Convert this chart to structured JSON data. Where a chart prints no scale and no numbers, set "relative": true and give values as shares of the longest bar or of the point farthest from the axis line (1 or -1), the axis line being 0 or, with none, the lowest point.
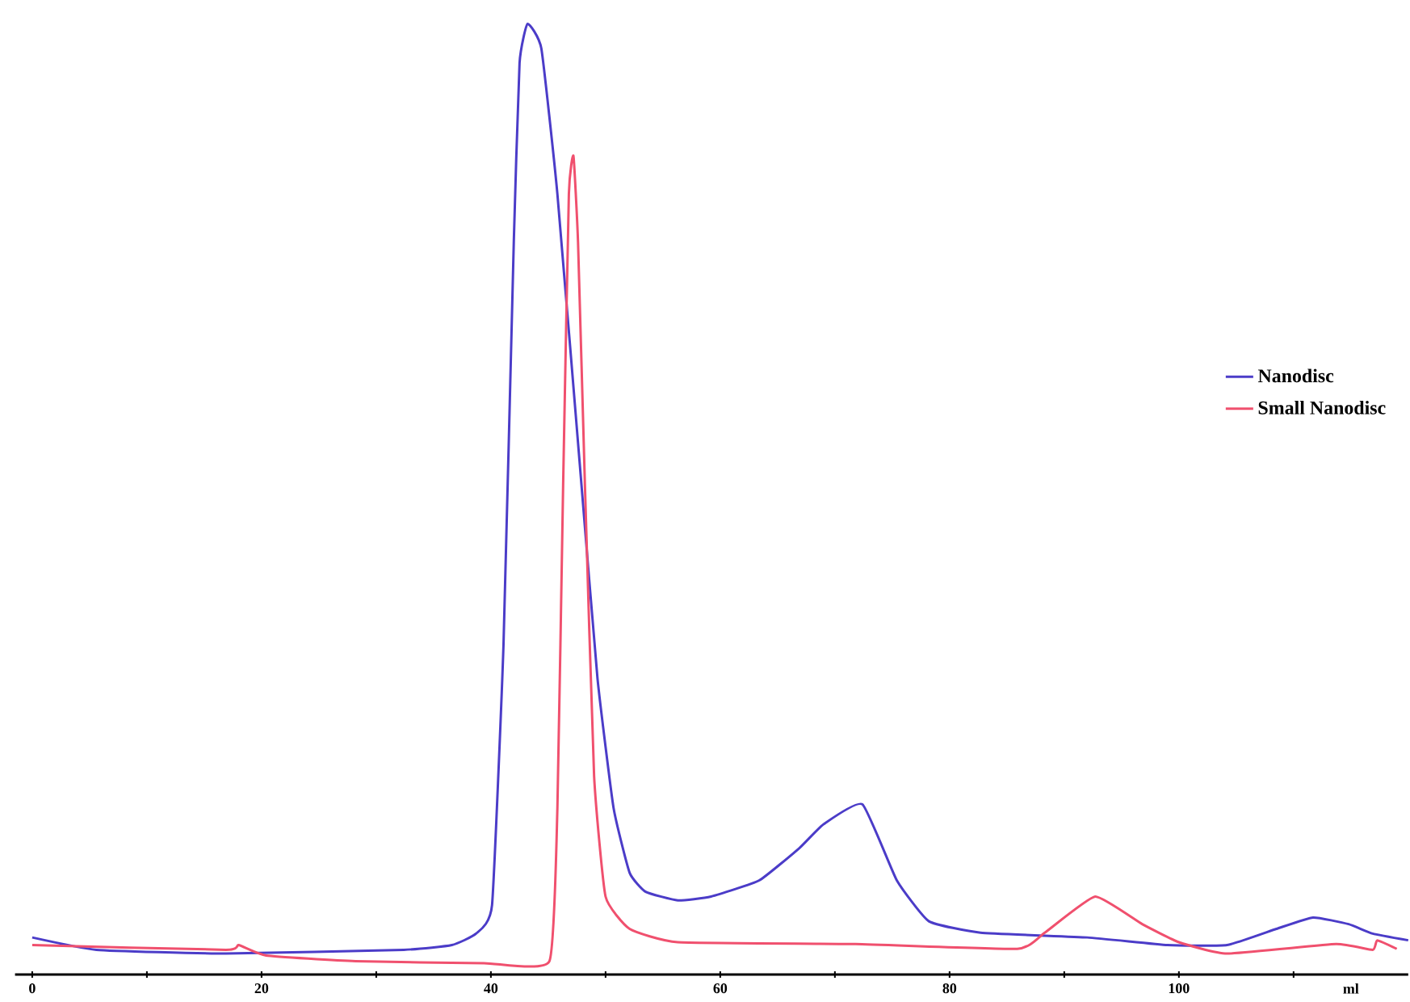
{
  "chart_data": {
    "type": "line",
    "relative": true,
    "xlabel": "ml",
    "xlim": [
      -1.5,
      120
    ],
    "xticks": [
      0,
      {
        "value": 10,
        "label": null
      },
      20,
      {
        "value": 30,
        "label": null
      },
      40,
      {
        "value": 50,
        "label": null
      },
      60,
      {
        "value": 70,
        "label": null
      },
      80,
      {
        "value": 90,
        "label": null
      },
      100,
      {
        "value": 110,
        "label": null
      }
    ],
    "legend": "right",
    "series": [
      {
        "name": "Nanodisc",
        "color": "#4b3cc8",
        "x": [
          0,
          5.6,
          16.9,
          32.4,
          36.6,
          38.7,
          40.1,
          41.1,
          42.0,
          42.5,
          43.2,
          44.4,
          45.8,
          47.9,
          49.3,
          50.7,
          52.1,
          53.5,
          56.3,
          59.2,
          63.4,
          66.9,
          69.0,
          72.4,
          75.4,
          78.2,
          82.7,
          92.0,
          99.0,
          104.2,
          108.5,
          111.7,
          114.8,
          116.9,
          120
        ],
        "values": [
          0.039,
          0.026,
          0.022,
          0.026,
          0.031,
          0.043,
          0.073,
          0.347,
          0.772,
          0.959,
          1.0,
          0.974,
          0.821,
          0.515,
          0.311,
          0.175,
          0.107,
          0.087,
          0.078,
          0.082,
          0.099,
          0.133,
          0.158,
          0.179,
          0.099,
          0.056,
          0.044,
          0.039,
          0.031,
          0.031,
          0.048,
          0.06,
          0.053,
          0.043,
          0.036
        ]
      },
      {
        "name": "Small Nanodisc",
        "color": "#f0506e",
        "x": [
          0,
          16.9,
          18.0,
          20.4,
          28.2,
          39.4,
          45.1,
          45.8,
          46.3,
          46.8,
          47.2,
          47.6,
          48.2,
          49.0,
          50.0,
          52.1,
          56.3,
          71.8,
          85.9,
          88.3,
          92.7,
          96.8,
          100.0,
          104.2,
          113.7,
          116.9,
          117.3,
          119.0
        ],
        "values": [
          0.031,
          0.026,
          0.031,
          0.02,
          0.014,
          0.012,
          0.014,
          0.175,
          0.515,
          0.821,
          0.861,
          0.77,
          0.515,
          0.209,
          0.082,
          0.048,
          0.034,
          0.032,
          0.027,
          0.044,
          0.082,
          0.053,
          0.034,
          0.022,
          0.032,
          0.026,
          0.036,
          0.027
        ]
      }
    ]
  }
}
